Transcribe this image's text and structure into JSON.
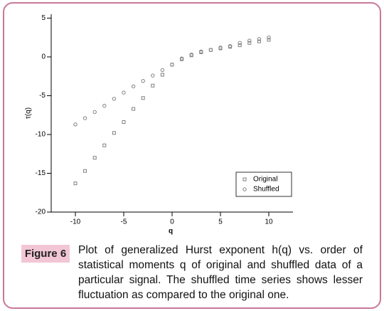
{
  "chart_data": {
    "type": "scatter",
    "x_label": "q",
    "y_label": "τ(q)",
    "x": [
      -10,
      -9,
      -8,
      -7,
      -6,
      -5,
      -4,
      -3,
      -2,
      -1,
      0,
      1,
      2,
      3,
      4,
      5,
      6,
      7,
      8,
      9,
      10
    ],
    "series": [
      {
        "name": "Original",
        "color": "#808080",
        "marker": "square",
        "values": [
          -16.3,
          -14.7,
          -13.0,
          -11.4,
          -9.8,
          -8.4,
          -6.7,
          -5.3,
          -3.7,
          -2.3,
          -1.0,
          -0.3,
          0.2,
          0.6,
          0.9,
          1.1,
          1.3,
          1.5,
          1.8,
          2.0,
          2.2
        ]
      },
      {
        "name": "Shuffled",
        "color": "#808080",
        "marker": "circle",
        "values": [
          -8.7,
          -7.9,
          -7.1,
          -6.3,
          -5.4,
          -4.6,
          -3.8,
          -3.1,
          -2.4,
          -1.7,
          -1.0,
          -0.2,
          0.3,
          0.7,
          0.9,
          1.2,
          1.4,
          1.8,
          2.1,
          2.3,
          2.5
        ]
      }
    ],
    "xlim": [
      -12.5,
      12.5
    ],
    "xticks": [
      -10,
      -5,
      0,
      5,
      10
    ],
    "ylim": [
      -20,
      5.5
    ],
    "yticks": [
      -20,
      -15,
      -10,
      -5,
      0,
      5
    ],
    "legend": "lower right",
    "grid": false
  },
  "figure_caption": {
    "label": "Figure 6",
    "text": "Plot of generalized Hurst exponent h(q) vs. order of statistical moments q of original and shuffled data of a particular signal. The shuffled time series shows lesser fluctuation as compared to the original one."
  }
}
